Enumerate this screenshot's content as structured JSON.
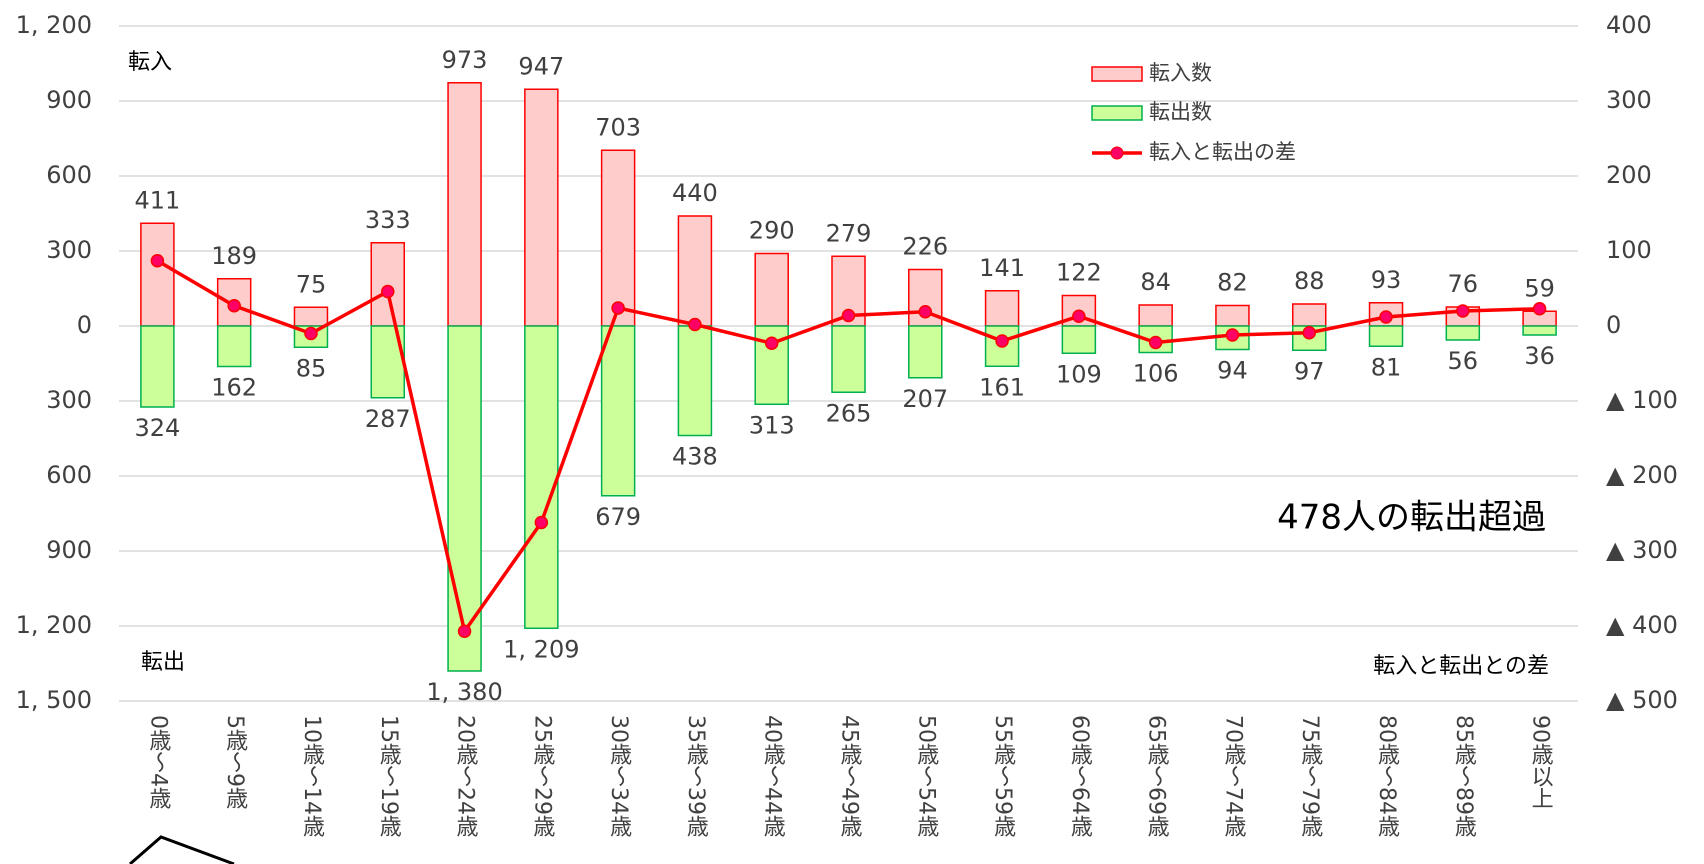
{
  "chart_data": {
    "type": "bar",
    "annotations": [
      "転入",
      "転出",
      "転入と転出との差",
      "478人の転出超過"
    ],
    "categories": [
      "0歳～4歳",
      "5歳～9歳",
      "10歳～14歳",
      "15歳～19歳",
      "20歳～24歳",
      "25歳～29歳",
      "30歳～34歳",
      "35歳～39歳",
      "40歳～44歳",
      "45歳～49歳",
      "50歳～54歳",
      "55歳～59歳",
      "60歳～64歳",
      "65歳～69歳",
      "70歳～74歳",
      "75歳～79歳",
      "80歳～84歳",
      "85歳～89歳",
      "90歳以上"
    ],
    "series": [
      {
        "name": "転入数",
        "color": "#ffcccc",
        "edge": "#ff0000",
        "values": [
          411,
          189,
          75,
          333,
          973,
          947,
          703,
          440,
          290,
          279,
          226,
          141,
          122,
          84,
          82,
          88,
          93,
          76,
          59
        ]
      },
      {
        "name": "転出数",
        "color": "#ccff99",
        "edge": "#00b050",
        "values": [
          -324,
          -162,
          -85,
          -287,
          -1380,
          -1209,
          -679,
          -438,
          -313,
          -265,
          -207,
          -161,
          -109,
          -106,
          -94,
          -97,
          -81,
          -56,
          -36
        ],
        "value_labels": [
          "324",
          "162",
          "85",
          "287",
          "1, 380",
          "1, 209",
          "679",
          "438",
          "313",
          "265",
          "207",
          "161",
          "109",
          "106",
          "94",
          "97",
          "81",
          "56",
          "36"
        ]
      },
      {
        "name": "転入と転出の差",
        "type": "line",
        "axis": "y2",
        "color": "#ff0000",
        "marker_color": "#ff0066",
        "values": [
          87,
          27,
          -10,
          46,
          -407,
          -262,
          24,
          2,
          -23,
          14,
          19,
          -20,
          13,
          -22,
          -12,
          -9,
          12,
          20,
          23
        ]
      }
    ],
    "ylim": [
      -1500,
      1200
    ],
    "yticks": [
      {
        "value": 1200,
        "label": "1, 200"
      },
      900,
      600,
      300,
      0,
      {
        "value": -300,
        "label": "300"
      },
      {
        "value": -600,
        "label": "600"
      },
      {
        "value": -900,
        "label": "900"
      },
      {
        "value": -1200,
        "label": "1, 200"
      },
      {
        "value": -1500,
        "label": "1, 500"
      }
    ],
    "y2lim": [
      -500,
      400
    ],
    "y2ticks": [
      400,
      300,
      200,
      100,
      0,
      {
        "value": -100,
        "label": "▲ 100"
      },
      {
        "value": -200,
        "label": "▲ 200"
      },
      {
        "value": -300,
        "label": "▲ 300"
      },
      {
        "value": -400,
        "label": "▲ 400"
      },
      {
        "value": -500,
        "label": "▲ 500"
      }
    ],
    "grid": true,
    "legend": "upper right"
  }
}
